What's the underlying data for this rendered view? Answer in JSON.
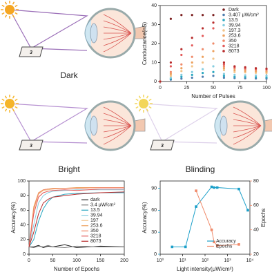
{
  "illustrations": {
    "labels": [
      "Dark",
      "Bright",
      "Blinding"
    ],
    "card_digit": "3"
  },
  "chart_data": [
    {
      "type": "scatter",
      "xlabel": "Number of Pulses",
      "ylabel": "Conductance(nS)",
      "x": [
        0,
        10,
        20,
        30,
        40,
        50,
        60,
        70,
        80,
        90,
        100
      ],
      "xlim": [
        0,
        100
      ],
      "xticks": [
        0,
        25,
        50,
        75,
        100
      ],
      "ylim": [
        0,
        40
      ],
      "yticks": [
        0,
        10,
        20,
        30,
        40
      ],
      "legend": "upper right",
      "series": [
        {
          "name": "Dark",
          "color": "#7b1f1f",
          "values": [
            0,
            33,
            35,
            35,
            35,
            35,
            null,
            null,
            null,
            null,
            null
          ]
        },
        {
          "name": "3.407 μW/cm²",
          "color": "#4f7fb0",
          "values": [
            0,
            1,
            1.5,
            2,
            2.5,
            3,
            2,
            1.8,
            1.7,
            1.6,
            1.5
          ]
        },
        {
          "name": "13.5",
          "color": "#2aa7c0",
          "values": [
            0,
            1.5,
            2.5,
            3.5,
            4.5,
            5,
            3,
            2.5,
            2.4,
            2.3,
            2.2
          ]
        },
        {
          "name": "39.94",
          "color": "#86cde0",
          "values": [
            0,
            2,
            3.5,
            5,
            6.5,
            8,
            4,
            3.5,
            3.3,
            3.2,
            3.1
          ]
        },
        {
          "name": "197.3",
          "color": "#f2c48a",
          "values": [
            0,
            3,
            5.5,
            8,
            10,
            12,
            6,
            5,
            4.8,
            4.6,
            4.5
          ]
        },
        {
          "name": "253.6",
          "color": "#eda15e",
          "values": [
            0,
            4,
            7,
            10,
            13,
            16,
            7,
            6,
            5.6,
            5.4,
            5.2
          ]
        },
        {
          "name": "350",
          "color": "#f08a6a",
          "values": [
            0,
            5,
            9,
            13,
            17,
            20,
            8,
            7,
            6.5,
            6.2,
            6
          ]
        },
        {
          "name": "3218",
          "color": "#e35b5b",
          "values": [
            0,
            8,
            14,
            19,
            24,
            28,
            9,
            7.5,
            7,
            6.7,
            6.5
          ]
        },
        {
          "name": "8073",
          "color": "#b82c2c",
          "values": [
            0,
            10,
            17,
            23,
            28,
            31,
            10,
            8,
            7.5,
            7,
            6.8
          ]
        }
      ]
    },
    {
      "type": "line",
      "xlabel": "Number of Epochs",
      "ylabel": "Accuracy(%)",
      "x": [
        0,
        10,
        20,
        30,
        40,
        50,
        75,
        100,
        150,
        200
      ],
      "xlim": [
        0,
        200
      ],
      "xticks": [
        0,
        50,
        100,
        150,
        200
      ],
      "ylim": [
        0,
        100
      ],
      "yticks": [
        0,
        20,
        40,
        60,
        80,
        100
      ],
      "legend": "center right",
      "series": [
        {
          "name": "dark",
          "color": "#222222",
          "values": [
            10,
            10,
            12,
            9,
            11,
            10,
            13,
            9,
            11,
            10
          ]
        },
        {
          "name": "3.4 μW/cm²",
          "color": "#7a7a7a",
          "values": [
            10,
            9,
            11,
            10,
            12,
            10,
            9,
            11,
            10,
            10
          ]
        },
        {
          "name": "13.5",
          "color": "#2aa7c0",
          "values": [
            10,
            20,
            45,
            62,
            72,
            78,
            82,
            83,
            84,
            84
          ]
        },
        {
          "name": "39.94",
          "color": "#86cde0",
          "values": [
            10,
            40,
            70,
            80,
            84,
            86,
            87,
            88,
            88,
            88
          ]
        },
        {
          "name": "197",
          "color": "#f2c48a",
          "values": [
            10,
            60,
            82,
            87,
            88,
            89,
            90,
            90,
            91,
            91
          ]
        },
        {
          "name": "253.6",
          "color": "#eda15e",
          "values": [
            10,
            65,
            84,
            88,
            89,
            90,
            90,
            91,
            91,
            91
          ]
        },
        {
          "name": "350",
          "color": "#f08a6a",
          "values": [
            10,
            62,
            83,
            88,
            89,
            89,
            90,
            90,
            91,
            91
          ]
        },
        {
          "name": "3218",
          "color": "#e35b5b",
          "values": [
            10,
            55,
            78,
            84,
            86,
            87,
            88,
            87,
            89,
            89
          ]
        },
        {
          "name": "8073",
          "color": "#b82c2c",
          "values": [
            10,
            30,
            55,
            70,
            75,
            78,
            80,
            82,
            84,
            85
          ]
        }
      ]
    },
    {
      "type": "line",
      "markers": true,
      "log_x": true,
      "xlabel": "Light intensity(μW/cm²)",
      "ylabel": "Accuracy(%)",
      "y2label": "Epochs",
      "y_color": "#1a9fc9",
      "y2_color": "#f08a6a",
      "x": [
        3.4,
        13.5,
        39.94,
        197,
        253.6,
        350,
        3218,
        8073
      ],
      "xlim": [
        1,
        10000
      ],
      "xticks": [
        {
          "value": 1,
          "label": "10⁰"
        },
        {
          "value": 10,
          "label": "10¹"
        },
        {
          "value": 100,
          "label": "10²"
        },
        {
          "value": 1000,
          "label": "10³"
        },
        {
          "value": 10000,
          "label": "10⁴"
        }
      ],
      "ylim": [
        0,
        100
      ],
      "yticks": [
        0,
        30,
        60,
        90
      ],
      "y2lim": [
        20,
        80
      ],
      "y2ticks": [
        20,
        40,
        60,
        80
      ],
      "legend": "lower right",
      "series": [
        {
          "name": "Accuracy",
          "color": "#1a9fc9",
          "values": [
            10,
            10,
            65,
            92,
            91,
            91,
            89,
            60
          ]
        },
        {
          "name": "Epochs",
          "color": "#f08a6a",
          "axis": "y2",
          "values": [
            null,
            null,
            72,
            40,
            30,
            27,
            28,
            null
          ]
        }
      ]
    }
  ]
}
